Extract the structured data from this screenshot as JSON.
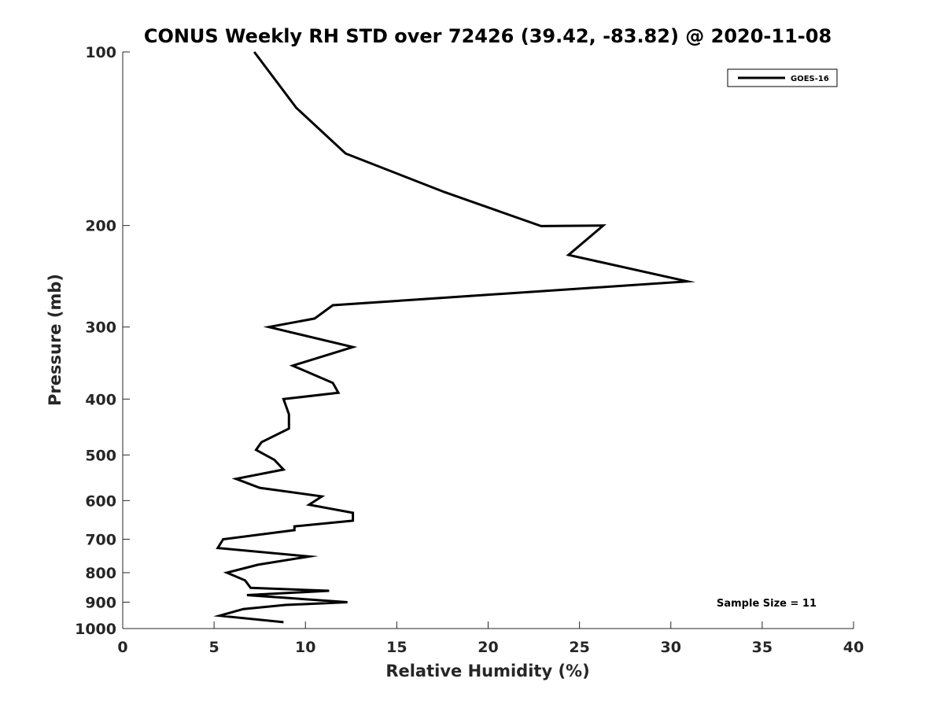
{
  "chart_data": {
    "type": "line",
    "title": "CONUS Weekly RH STD over 72426 (39.42, -83.82) @ 2020-11-08",
    "xlabel": "Relative Humidity (%)",
    "ylabel": "Pressure (mb)",
    "xlim": [
      0,
      40
    ],
    "ylim": [
      100,
      1000
    ],
    "y_scale": "log",
    "y_reversed": true,
    "grid": false,
    "legend_position": "top-right",
    "x_ticks": [
      0,
      5,
      10,
      15,
      20,
      25,
      30,
      35,
      40
    ],
    "y_ticks": [
      100,
      200,
      300,
      400,
      500,
      600,
      700,
      800,
      900,
      1000
    ],
    "annotation": "Sample Size = 11",
    "series": [
      {
        "name": "GOES-16",
        "color": "#000000",
        "points": [
          [
            7.2,
            100
          ],
          [
            9.5,
            125
          ],
          [
            12.2,
            150
          ],
          [
            17.6,
            175
          ],
          [
            22.9,
            200.5
          ],
          [
            26.3,
            200
          ],
          [
            24.4,
            225
          ],
          [
            30.9,
            250
          ],
          [
            11.5,
            275
          ],
          [
            10.5,
            290
          ],
          [
            8.0,
            300
          ],
          [
            12.6,
            325
          ],
          [
            9.3,
            350
          ],
          [
            11.5,
            375
          ],
          [
            11.8,
            390
          ],
          [
            8.8,
            400
          ],
          [
            9.1,
            425
          ],
          [
            9.1,
            450
          ],
          [
            7.6,
            475
          ],
          [
            7.3,
            490
          ],
          [
            8.3,
            510
          ],
          [
            8.8,
            530
          ],
          [
            6.2,
            550
          ],
          [
            7.5,
            570
          ],
          [
            10.9,
            590
          ],
          [
            10.2,
            610
          ],
          [
            12.6,
            630
          ],
          [
            12.6,
            650
          ],
          [
            9.4,
            665
          ],
          [
            9.4,
            675
          ],
          [
            5.5,
            700
          ],
          [
            5.2,
            725
          ],
          [
            10.2,
            750
          ],
          [
            7.4,
            775
          ],
          [
            5.7,
            800
          ],
          [
            6.7,
            825
          ],
          [
            7.0,
            850
          ],
          [
            11.3,
            860
          ],
          [
            6.8,
            875
          ],
          [
            12.3,
            900
          ],
          [
            8.9,
            910
          ],
          [
            6.6,
            925
          ],
          [
            5.3,
            950
          ],
          [
            8.8,
            975
          ]
        ]
      }
    ]
  }
}
